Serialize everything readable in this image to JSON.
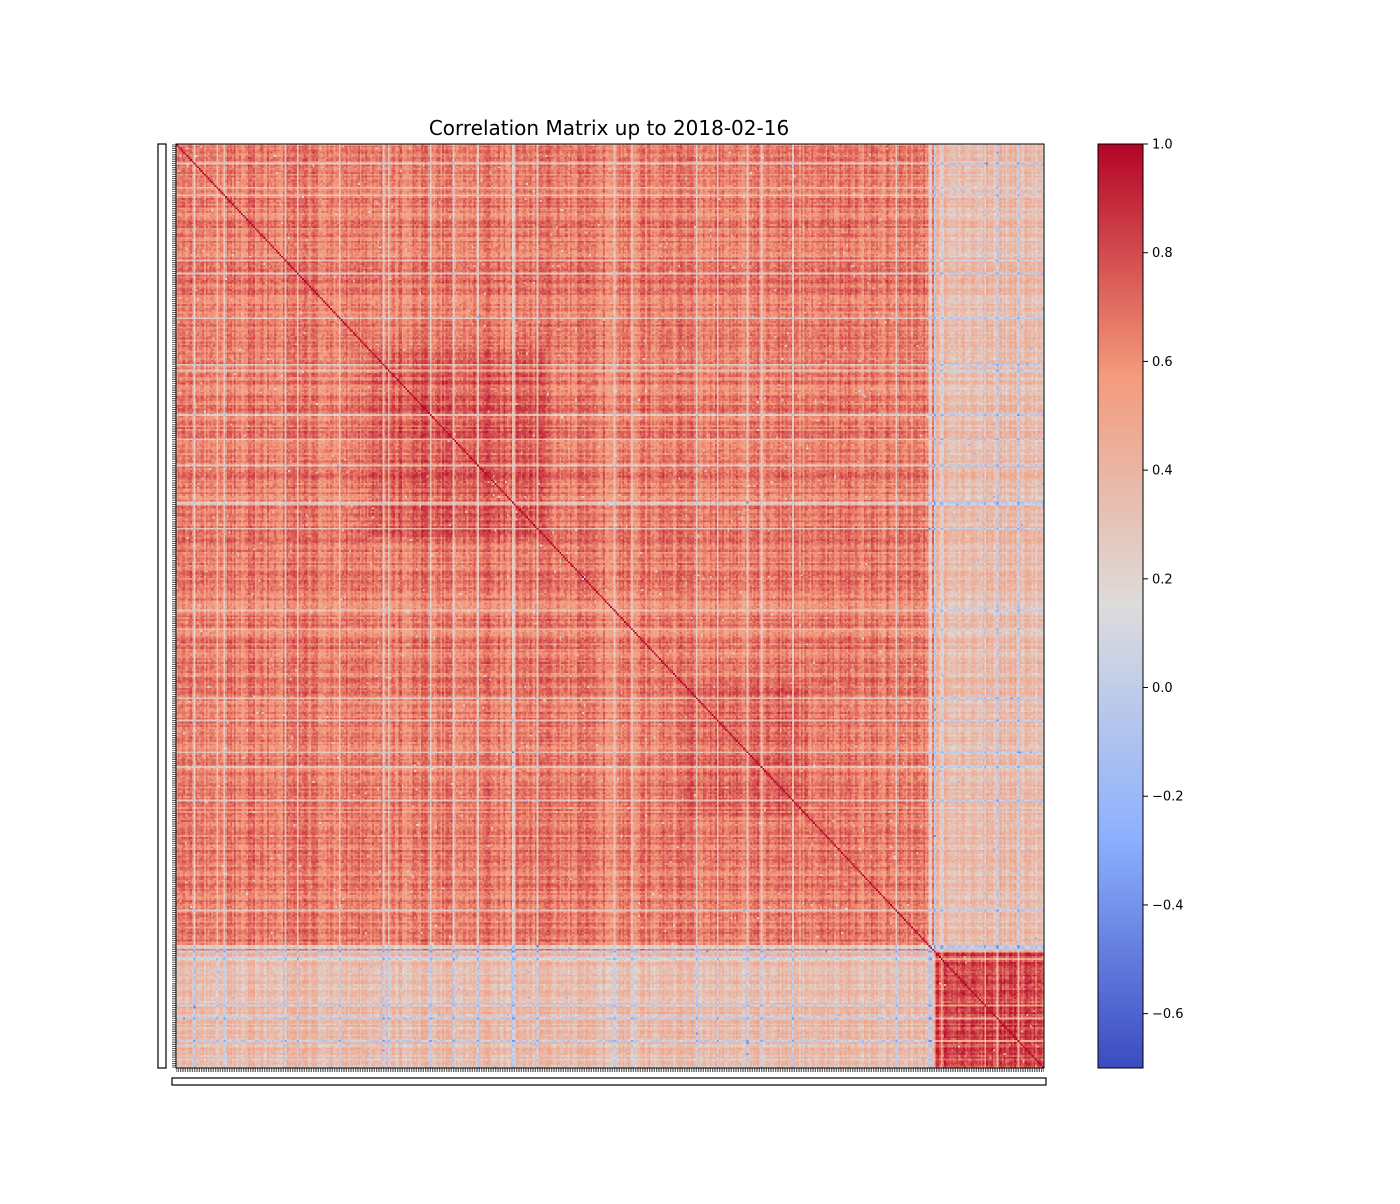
{
  "chart_data": {
    "type": "heatmap",
    "title": "Correlation Matrix up to 2018-02-16",
    "xlabel": "",
    "ylabel": "",
    "matrix_size": 496,
    "diagonal_value": 1.0,
    "value_range": [
      -0.7,
      1.0
    ],
    "colormap": "coolwarm",
    "colormap_stops": [
      "#3b4cc0",
      "#8db0fe",
      "#dddcdc",
      "#f49a7b",
      "#b40426"
    ],
    "colorbar": {
      "ticks": [
        1.0,
        0.8,
        0.6,
        0.4,
        0.2,
        0.0,
        -0.2,
        -0.4,
        -0.6
      ],
      "tick_labels": [
        "1.0",
        "0.8",
        "0.6",
        "0.4",
        "0.2",
        "0.0",
        "−0.2",
        "−0.4",
        "−0.6"
      ]
    },
    "tick_labels_note": "every row and column carries a dense, overlapping tick label; the labels are illegible",
    "block_structure": [
      {
        "name": "main-block",
        "rows": [
          0,
          432
        ],
        "typical_value": 0.65
      },
      {
        "name": "strong-cluster-1",
        "rows": [
          110,
          210
        ],
        "typical_value": 0.75
      },
      {
        "name": "strong-cluster-2",
        "rows": [
          290,
          360
        ],
        "typical_value": 0.72
      },
      {
        "name": "tail-block",
        "rows": [
          433,
          495
        ],
        "typical_value": 0.8
      },
      {
        "name": "cross-block",
        "between": [
          "main-block",
          "tail-block"
        ],
        "typical_value": 0.35
      }
    ],
    "grid": false,
    "legend": "colorbar-right"
  }
}
